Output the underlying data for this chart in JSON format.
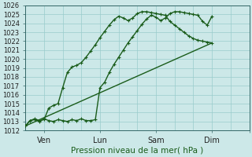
{
  "xlabel": "Pression niveau de la mer( hPa )",
  "bg_color": "#cce8e8",
  "grid_color": "#99cccc",
  "line_color": "#1a5c1a",
  "ylim": [
    1012,
    1026
  ],
  "yticks": [
    1012,
    1013,
    1014,
    1015,
    1016,
    1017,
    1018,
    1019,
    1020,
    1021,
    1022,
    1023,
    1024,
    1025,
    1026
  ],
  "xlim": [
    0,
    288
  ],
  "xtick_positions": [
    24,
    96,
    168,
    240,
    288
  ],
  "xtick_labels": [
    "Ven",
    "Lun",
    "Sam",
    "Dim",
    ""
  ],
  "line1_x": [
    0,
    6,
    12,
    18,
    24,
    30,
    36,
    42,
    48,
    54,
    60,
    66,
    72,
    78,
    84,
    90,
    96,
    102,
    108,
    114,
    120,
    126,
    132,
    138,
    144,
    150,
    156,
    162,
    168,
    174,
    180,
    186,
    192,
    198,
    204,
    210,
    216,
    222,
    228,
    234,
    240
  ],
  "line1_y": [
    1012.5,
    1013.1,
    1013.2,
    1013.0,
    1013.3,
    1013.1,
    1013.0,
    1013.2,
    1013.1,
    1013.0,
    1013.2,
    1013.1,
    1013.3,
    1013.1,
    1013.1,
    1013.2,
    1016.8,
    1017.4,
    1018.5,
    1019.4,
    1020.2,
    1021.0,
    1021.8,
    1022.5,
    1023.2,
    1023.9,
    1024.5,
    1024.9,
    1024.7,
    1024.3,
    1024.6,
    1025.1,
    1025.3,
    1025.3,
    1025.2,
    1025.1,
    1025.0,
    1024.9,
    1024.2,
    1023.8,
    1024.8
  ],
  "line2_x": [
    0,
    6,
    12,
    18,
    24,
    30,
    36,
    42,
    48,
    54,
    60,
    66,
    72,
    78,
    84,
    90,
    96,
    102,
    108,
    114,
    120,
    126,
    132,
    138,
    144,
    150,
    156,
    162,
    168,
    174,
    180,
    186,
    192,
    198,
    204,
    210,
    216,
    222,
    228,
    234,
    240
  ],
  "line2_y": [
    1012.5,
    1013.1,
    1013.3,
    1013.1,
    1013.2,
    1014.5,
    1014.8,
    1015.0,
    1016.8,
    1018.5,
    1019.1,
    1019.3,
    1019.6,
    1020.2,
    1020.9,
    1021.6,
    1022.4,
    1023.1,
    1023.8,
    1024.4,
    1024.8,
    1024.6,
    1024.3,
    1024.6,
    1025.1,
    1025.3,
    1025.3,
    1025.2,
    1025.1,
    1025.0,
    1024.9,
    1024.2,
    1023.8,
    1023.4,
    1023.0,
    1022.6,
    1022.3,
    1022.1,
    1022.0,
    1021.9,
    1021.8
  ],
  "line3_x": [
    0,
    240
  ],
  "line3_y": [
    1012.5,
    1021.8
  ],
  "marker": "+",
  "markersize": 3.5,
  "linewidth": 1.0
}
